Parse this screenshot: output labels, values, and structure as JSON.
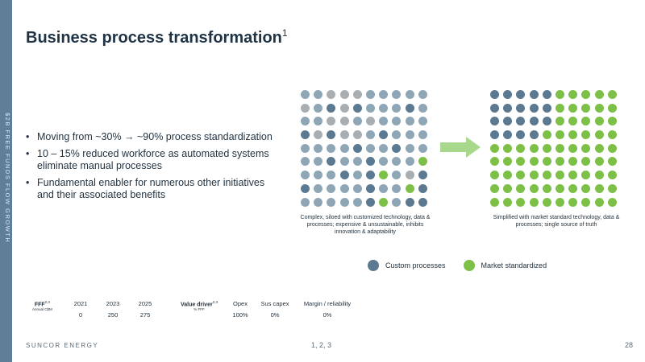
{
  "sidebar": {
    "text": "$2B FREE FUNDS FLOW GROWTH"
  },
  "title": {
    "text": "Business process transformation",
    "sup": "1"
  },
  "bullets": [
    "Moving from ~30% → ~90% process standardization",
    "10 – 15% reduced workforce as automated systems eliminate manual processes",
    "Fundamental enabler for numerous other initiatives and their associated benefits"
  ],
  "colors": {
    "custom": "#5b7a91",
    "market": "#7dc048",
    "gray": "#a9aeb2",
    "light": "#8fa6b7",
    "arrow": "#a7d88c",
    "sidebar": "#5f7f99"
  },
  "left_grid": {
    "rows": [
      "LLGGGLLLLL",
      "GLCGCLLLCL",
      "LLGGLGLLLL",
      "CGCGGLCLLL",
      "LLLLCLLCLL",
      "LLCLLCLLLM",
      "LLLCLCMLGC",
      "CLLLLCLLMC",
      "LLLLLCMLCC"
    ],
    "caption": "Complex, siloed with customized technology, data & processes; expensive & unsustainable, inhibits innovation & adaptability"
  },
  "right_grid": {
    "rows": [
      "CCCCCMMMMM",
      "CCCCCMMMMM",
      "CCCCCMMMMM",
      "CCCCMMMMMM",
      "MMMMMMMMMM",
      "MMMMMMMMMM",
      "MMMMMMMMMM",
      "MMMMMMMMMM",
      "MMMMMMMMMM"
    ],
    "caption": "Simplified with market standard technology, data & processes; single source of truth"
  },
  "legend": {
    "custom": "Custom processes",
    "market": "Market standardized"
  },
  "fff": {
    "label": "FFF",
    "sup": "2,3",
    "sub": "Annual C$M",
    "years": [
      "2021",
      "2023",
      "2025"
    ],
    "values": [
      "0",
      "250",
      "275"
    ]
  },
  "value_driver": {
    "label": "Value driver",
    "sup": "2,3",
    "sub": "% FFF",
    "headers": [
      "Opex",
      "Sus capex",
      "Margin / reliability"
    ],
    "values": [
      "100%",
      "0%",
      "0%"
    ]
  },
  "footer": {
    "brand": "SUNCOR ENERGY",
    "notes": "1, 2, 3",
    "page": "28"
  }
}
